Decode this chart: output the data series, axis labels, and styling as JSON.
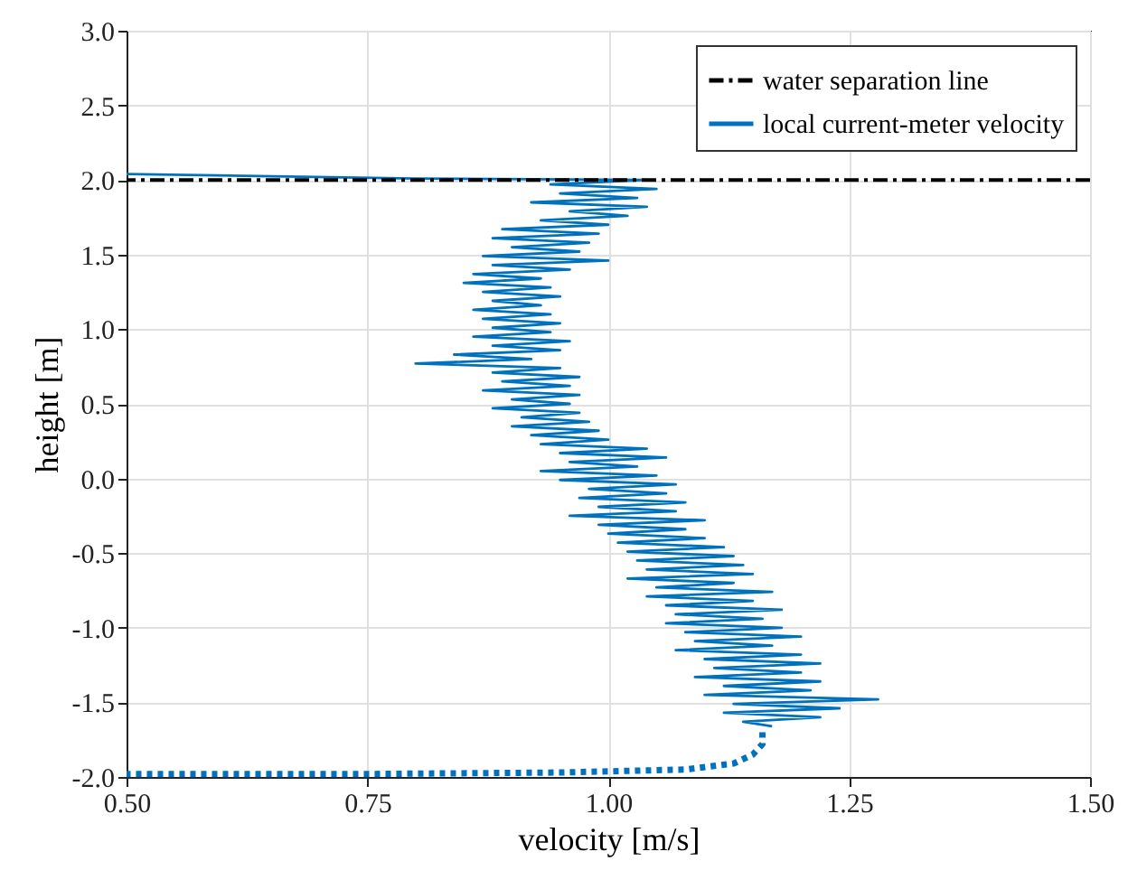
{
  "chart_data": {
    "type": "line",
    "xlabel": "velocity [m/s]",
    "ylabel": "height [m]",
    "xlim": [
      0.5,
      1.5
    ],
    "ylim": [
      -2.0,
      3.0
    ],
    "xticks": [
      {
        "value": 0.5,
        "label": "0.50"
      },
      0.75,
      {
        "value": 1.0,
        "label": "1.00"
      },
      1.25,
      {
        "value": 1.5,
        "label": "1.50"
      }
    ],
    "yticks": [
      {
        "value": -2.0,
        "label": "-2.0"
      },
      -1.5,
      {
        "value": -1.0,
        "label": "-1.0"
      },
      -0.5,
      {
        "value": 0.0,
        "label": "0.0"
      },
      0.5,
      {
        "value": 1.0,
        "label": "1.0"
      },
      1.5,
      {
        "value": 2.0,
        "label": "2.0"
      },
      2.5,
      {
        "value": 3.0,
        "label": "3.0"
      }
    ],
    "grid": true,
    "legend": "top right",
    "ref_lines": [
      {
        "axis": "y",
        "value": 2.0,
        "label": "water separation line",
        "color": "#000000",
        "line_style": "dashed"
      }
    ],
    "series": [
      {
        "name": "local current-meter velocity",
        "color": "#0072bd",
        "line_style": "solid",
        "x": [
          0.5,
          0.8,
          1.04,
          0.94,
          1.05,
          0.95,
          1.03,
          0.92,
          1.04,
          0.96,
          1.02,
          0.93,
          1.0,
          0.89,
          0.99,
          0.88,
          0.98,
          0.9,
          0.97,
          0.87,
          1.0,
          0.88,
          0.96,
          0.86,
          0.93,
          0.85,
          0.94,
          0.87,
          0.95,
          0.88,
          0.93,
          0.86,
          0.94,
          0.87,
          0.95,
          0.88,
          0.94,
          0.86,
          0.96,
          0.88,
          0.95,
          0.84,
          0.92,
          0.8,
          0.95,
          0.88,
          0.97,
          0.89,
          0.96,
          0.87,
          0.97,
          0.9,
          0.96,
          0.88,
          0.97,
          0.91,
          0.98,
          0.9,
          0.99,
          0.92,
          1.0,
          0.93,
          1.04,
          0.95,
          1.06,
          0.96,
          1.03,
          0.93,
          1.05,
          0.95,
          1.07,
          0.98,
          1.06,
          0.97,
          1.08,
          0.99,
          1.07,
          0.96,
          1.1,
          0.99,
          1.08,
          1.0,
          1.1,
          1.01,
          1.12,
          1.02,
          1.13,
          1.03,
          1.14,
          1.04,
          1.15,
          1.02,
          1.13,
          1.05,
          1.17,
          1.04,
          1.15,
          1.06,
          1.18,
          1.07,
          1.16,
          1.06,
          1.18,
          1.08,
          1.2,
          1.09,
          1.17,
          1.07,
          1.2,
          1.1,
          1.22,
          1.11,
          1.2,
          1.09,
          1.22,
          1.12,
          1.21,
          1.1,
          1.28,
          1.13,
          1.24,
          1.12,
          1.22,
          1.14,
          1.17
        ],
        "values": [
          2.04,
          2.01,
          2.0,
          1.97,
          1.94,
          1.91,
          1.88,
          1.85,
          1.82,
          1.79,
          1.76,
          1.73,
          1.7,
          1.67,
          1.64,
          1.61,
          1.58,
          1.55,
          1.52,
          1.49,
          1.46,
          1.43,
          1.4,
          1.37,
          1.34,
          1.31,
          1.28,
          1.25,
          1.22,
          1.19,
          1.16,
          1.13,
          1.1,
          1.07,
          1.04,
          1.01,
          0.98,
          0.95,
          0.92,
          0.89,
          0.86,
          0.83,
          0.8,
          0.77,
          0.74,
          0.71,
          0.68,
          0.65,
          0.62,
          0.59,
          0.56,
          0.53,
          0.5,
          0.47,
          0.44,
          0.41,
          0.38,
          0.35,
          0.32,
          0.29,
          0.26,
          0.23,
          0.2,
          0.17,
          0.14,
          0.11,
          0.08,
          0.05,
          0.02,
          -0.01,
          -0.04,
          -0.07,
          -0.1,
          -0.13,
          -0.16,
          -0.19,
          -0.22,
          -0.25,
          -0.28,
          -0.31,
          -0.34,
          -0.37,
          -0.4,
          -0.43,
          -0.46,
          -0.49,
          -0.52,
          -0.55,
          -0.58,
          -0.61,
          -0.64,
          -0.67,
          -0.7,
          -0.73,
          -0.76,
          -0.79,
          -0.82,
          -0.85,
          -0.88,
          -0.91,
          -0.94,
          -0.97,
          -1.0,
          -1.03,
          -1.06,
          -1.09,
          -1.12,
          -1.15,
          -1.18,
          -1.21,
          -1.24,
          -1.27,
          -1.3,
          -1.33,
          -1.36,
          -1.39,
          -1.42,
          -1.45,
          -1.48,
          -1.51,
          -1.54,
          -1.57,
          -1.6,
          -1.63,
          -1.66
        ]
      },
      {
        "color": "#0072bd",
        "line_style": "dotted",
        "x": [
          1.16,
          1.16,
          1.15,
          1.13,
          1.08,
          0.95,
          0.75,
          0.5
        ],
        "values": [
          -1.7,
          -1.78,
          -1.85,
          -1.91,
          -1.95,
          -1.97,
          -1.98,
          -1.98
        ]
      }
    ]
  }
}
